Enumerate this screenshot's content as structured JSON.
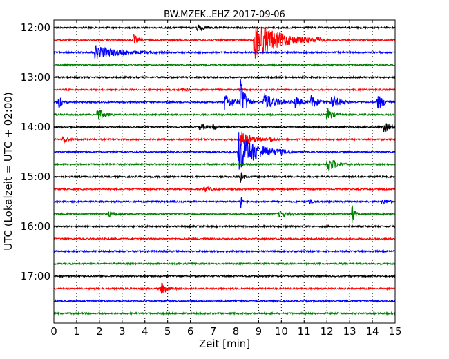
{
  "chart_data": {
    "type": "line",
    "title": "BW.MZEK..EHZ 2017-09-06",
    "xlabel": "Zeit  [min]",
    "ylabel": "UTC (Lokalzeit = UTC + 02:00)",
    "xlim": [
      0,
      15
    ],
    "x_ticks": [
      0,
      1,
      2,
      3,
      4,
      5,
      6,
      7,
      8,
      9,
      10,
      11,
      12,
      13,
      14,
      15
    ],
    "x_tick_labels": [
      "0",
      "1",
      "2",
      "3",
      "4",
      "5",
      "6",
      "7",
      "8",
      "9",
      "10",
      "11",
      "12",
      "13",
      "14",
      "15"
    ],
    "y_tick_labels": [
      "12:00",
      "13:00",
      "14:00",
      "15:00",
      "16:00",
      "17:00"
    ],
    "grid": "vertical dotted",
    "colors": [
      "#000000",
      "#ff0000",
      "#0000ff",
      "#008000"
    ],
    "start_times": [
      "12:00",
      "12:15",
      "12:30",
      "12:45",
      "13:00",
      "13:15",
      "13:30",
      "13:45",
      "14:00",
      "14:15",
      "14:30",
      "14:45",
      "15:00",
      "15:15",
      "15:30",
      "15:45",
      "16:00",
      "16:15",
      "16:30",
      "16:45",
      "17:00",
      "17:15",
      "17:30",
      "17:45"
    ],
    "noise_amplitude": 1.1,
    "events": [
      {
        "start": "12:00",
        "t": 6.3,
        "amp": 6,
        "dur": 0.25
      },
      {
        "start": "12:15",
        "t": 3.5,
        "amp": 9,
        "dur": 0.15
      },
      {
        "start": "12:15",
        "t": 8.8,
        "amp": 30,
        "dur": 1.0
      },
      {
        "start": "12:15",
        "t": 11.5,
        "amp": 2,
        "dur": 0.5
      },
      {
        "start": "12:30",
        "t": 1.8,
        "amp": 9,
        "dur": 1.0
      },
      {
        "start": "13:15",
        "t": 5.6,
        "amp": 2,
        "dur": 0.2
      },
      {
        "start": "13:30",
        "t": 0.2,
        "amp": 10,
        "dur": 0.15
      },
      {
        "start": "13:30",
        "t": 7.5,
        "amp": 12,
        "dur": 0.4
      },
      {
        "start": "13:30",
        "t": 8.2,
        "amp": 32,
        "dur": 0.2
      },
      {
        "start": "13:30",
        "t": 9.2,
        "amp": 14,
        "dur": 0.5
      },
      {
        "start": "13:30",
        "t": 10.6,
        "amp": 8,
        "dur": 0.3
      },
      {
        "start": "13:30",
        "t": 11.3,
        "amp": 10,
        "dur": 0.3
      },
      {
        "start": "13:30",
        "t": 12.2,
        "amp": 11,
        "dur": 0.3
      },
      {
        "start": "13:30",
        "t": 14.2,
        "amp": 12,
        "dur": 0.3
      },
      {
        "start": "13:45",
        "t": 1.9,
        "amp": 10,
        "dur": 0.25
      },
      {
        "start": "13:45",
        "t": 12.0,
        "amp": 12,
        "dur": 0.2
      },
      {
        "start": "14:00",
        "t": 6.4,
        "amp": 5,
        "dur": 0.3
      },
      {
        "start": "14:00",
        "t": 7.0,
        "amp": 4,
        "dur": 0.2
      },
      {
        "start": "14:00",
        "t": 14.5,
        "amp": 8,
        "dur": 0.25
      },
      {
        "start": "14:15",
        "t": 0.4,
        "amp": 8,
        "dur": 0.15
      },
      {
        "start": "14:15",
        "t": 8.2,
        "amp": 14,
        "dur": 0.4
      },
      {
        "start": "14:15",
        "t": 9.5,
        "amp": 4,
        "dur": 0.15
      },
      {
        "start": "14:30",
        "t": 8.1,
        "amp": 30,
        "dur": 0.8
      },
      {
        "start": "14:45",
        "t": 12.0,
        "amp": 14,
        "dur": 0.3
      },
      {
        "start": "15:00",
        "t": 8.2,
        "amp": 10,
        "dur": 0.1
      },
      {
        "start": "15:15",
        "t": 6.6,
        "amp": 4,
        "dur": 0.25
      },
      {
        "start": "15:30",
        "t": 8.2,
        "amp": 22,
        "dur": 0.05
      },
      {
        "start": "15:30",
        "t": 11.2,
        "amp": 4,
        "dur": 0.15
      },
      {
        "start": "15:30",
        "t": 14.4,
        "amp": 5,
        "dur": 0.2
      },
      {
        "start": "15:45",
        "t": 2.4,
        "amp": 4,
        "dur": 0.3
      },
      {
        "start": "15:45",
        "t": 9.9,
        "amp": 5,
        "dur": 0.3
      },
      {
        "start": "15:45",
        "t": 13.1,
        "amp": 16,
        "dur": 0.1
      },
      {
        "start": "17:15",
        "t": 4.7,
        "amp": 10,
        "dur": 0.25
      }
    ]
  }
}
